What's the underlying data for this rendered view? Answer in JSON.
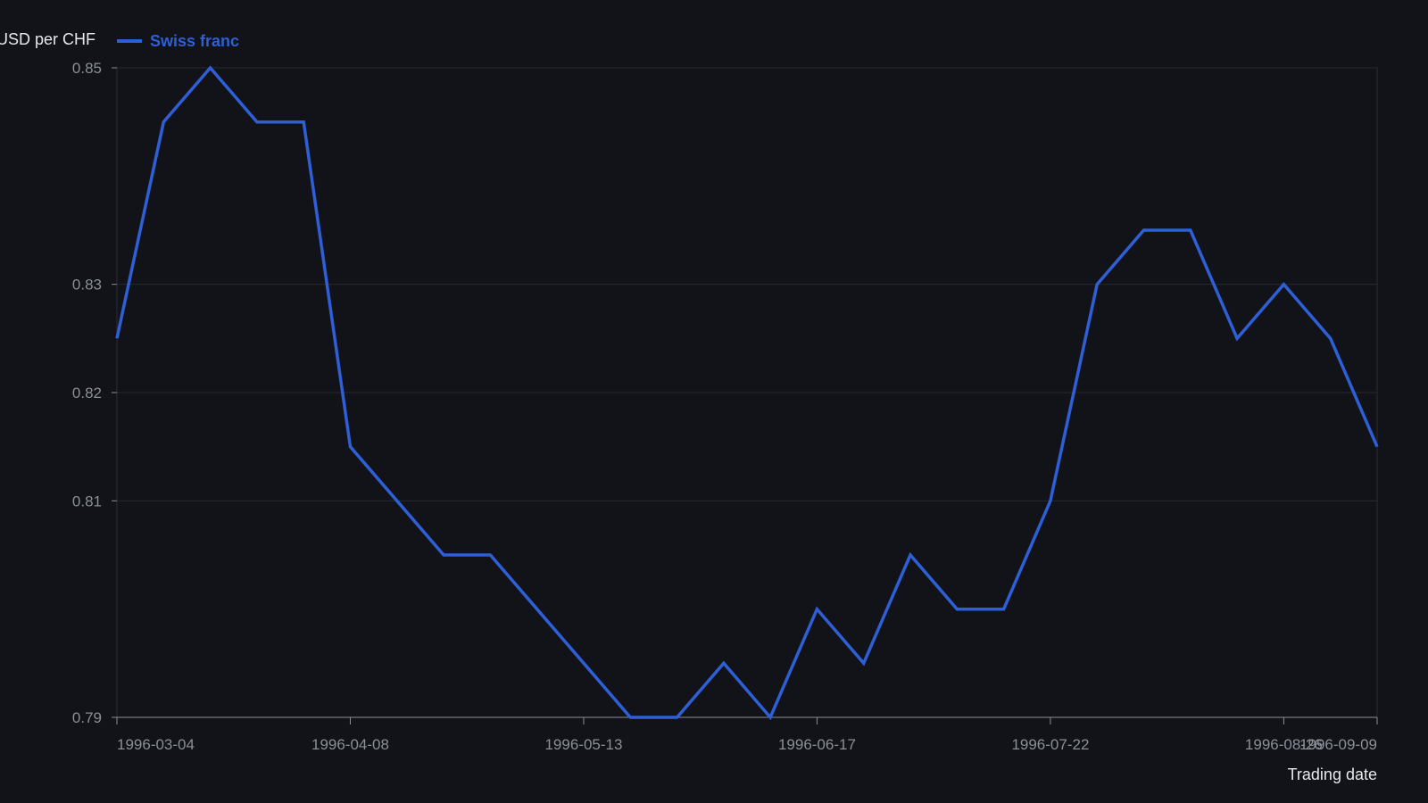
{
  "chart_data": {
    "type": "line",
    "ylabel": "USD per CHF",
    "xlabel": "Trading date",
    "ylim": [
      0.79,
      0.85
    ],
    "yticks": [
      "0.85",
      "0.83",
      "0.82",
      "0.81",
      "0.79"
    ],
    "xticks": [
      "1996-03-04",
      "1996-04-08",
      "1996-05-13",
      "1996-06-17",
      "1996-07-22",
      "1996-08-26",
      "1996-09-09"
    ],
    "grid": true,
    "legend_position": "top-left",
    "series": [
      {
        "name": "Swiss franc",
        "color": "#2f5fd6",
        "x": [
          "1996-03-04",
          "1996-03-11",
          "1996-03-18",
          "1996-03-25",
          "1996-04-01",
          "1996-04-08",
          "1996-04-15",
          "1996-04-22",
          "1996-04-29",
          "1996-05-06",
          "1996-05-13",
          "1996-05-20",
          "1996-05-27",
          "1996-06-03",
          "1996-06-10",
          "1996-06-17",
          "1996-06-24",
          "1996-07-01",
          "1996-07-08",
          "1996-07-15",
          "1996-07-22",
          "1996-07-29",
          "1996-08-05",
          "1996-08-12",
          "1996-08-19",
          "1996-08-26",
          "1996-09-02",
          "1996-09-09"
        ],
        "values": [
          0.825,
          0.845,
          0.85,
          0.845,
          0.845,
          0.815,
          0.81,
          0.805,
          0.805,
          0.8,
          0.795,
          0.79,
          0.79,
          0.795,
          0.79,
          0.8,
          0.795,
          0.805,
          0.8,
          0.8,
          0.81,
          0.83,
          0.835,
          0.835,
          0.825,
          0.83,
          0.825,
          0.815
        ]
      }
    ]
  }
}
